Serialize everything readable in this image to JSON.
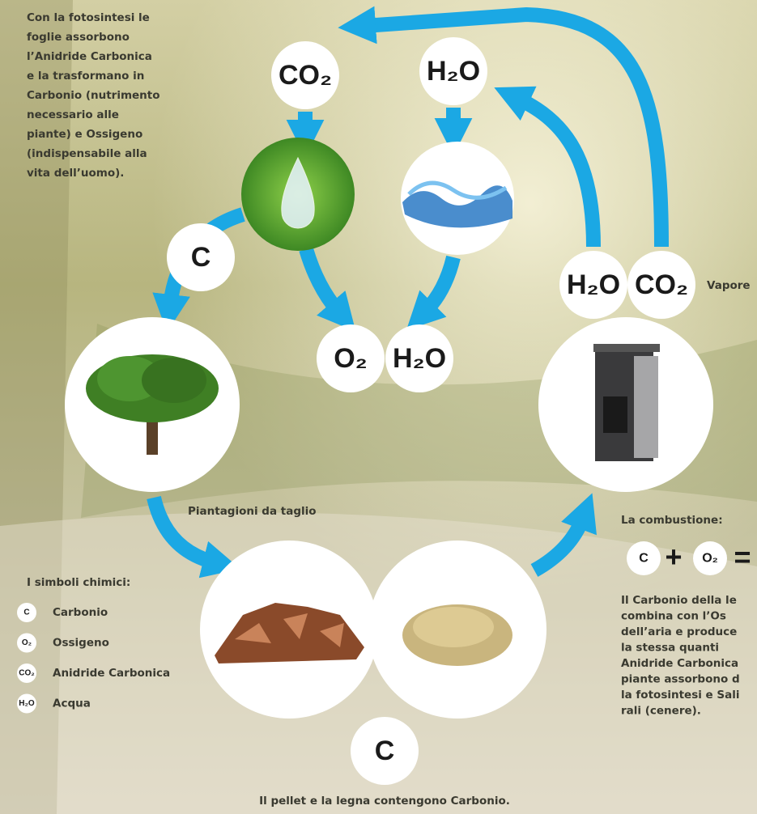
{
  "intro": {
    "lines": [
      "Con la fotosintesi le",
      "foglie assorbono",
      "l’Anidride Carbonica",
      "e la trasformano in",
      "Carbonio (nutrimento",
      "necessario alle",
      "piante) e Ossigeno",
      "(indispensabile alla",
      "vita dell’uomo)."
    ]
  },
  "formulas": [
    "CO₂",
    "H₂O",
    "C",
    "O₂",
    "H₂O",
    "H₂O",
    "CO₂",
    "C"
  ],
  "vapor_label": "Vapore",
  "plantation_label": "Piantagioni da taglio",
  "combustion": {
    "title": "La combustione:",
    "equation": [
      "C",
      "+",
      "O₂",
      "="
    ],
    "lines": [
      "Il Carbonio della le",
      "combina con l’Os",
      "dell’aria e produce",
      "la stessa quanti",
      "Anidride Carbonica",
      "piante assorbono d",
      "la fotosintesi e Sali",
      "rali (cenere)."
    ]
  },
  "legend": {
    "title": "I simboli chimici:",
    "items": [
      {
        "symbol": "C",
        "name": "Carbonio"
      },
      {
        "symbol": "O₂",
        "name": "Ossigeno"
      },
      {
        "symbol": "CO₂",
        "name": "Anidride Carbonica"
      },
      {
        "symbol": "H₂O",
        "name": "Acqua"
      }
    ]
  },
  "caption": "Il pellet e la legna contengono Carbonio."
}
